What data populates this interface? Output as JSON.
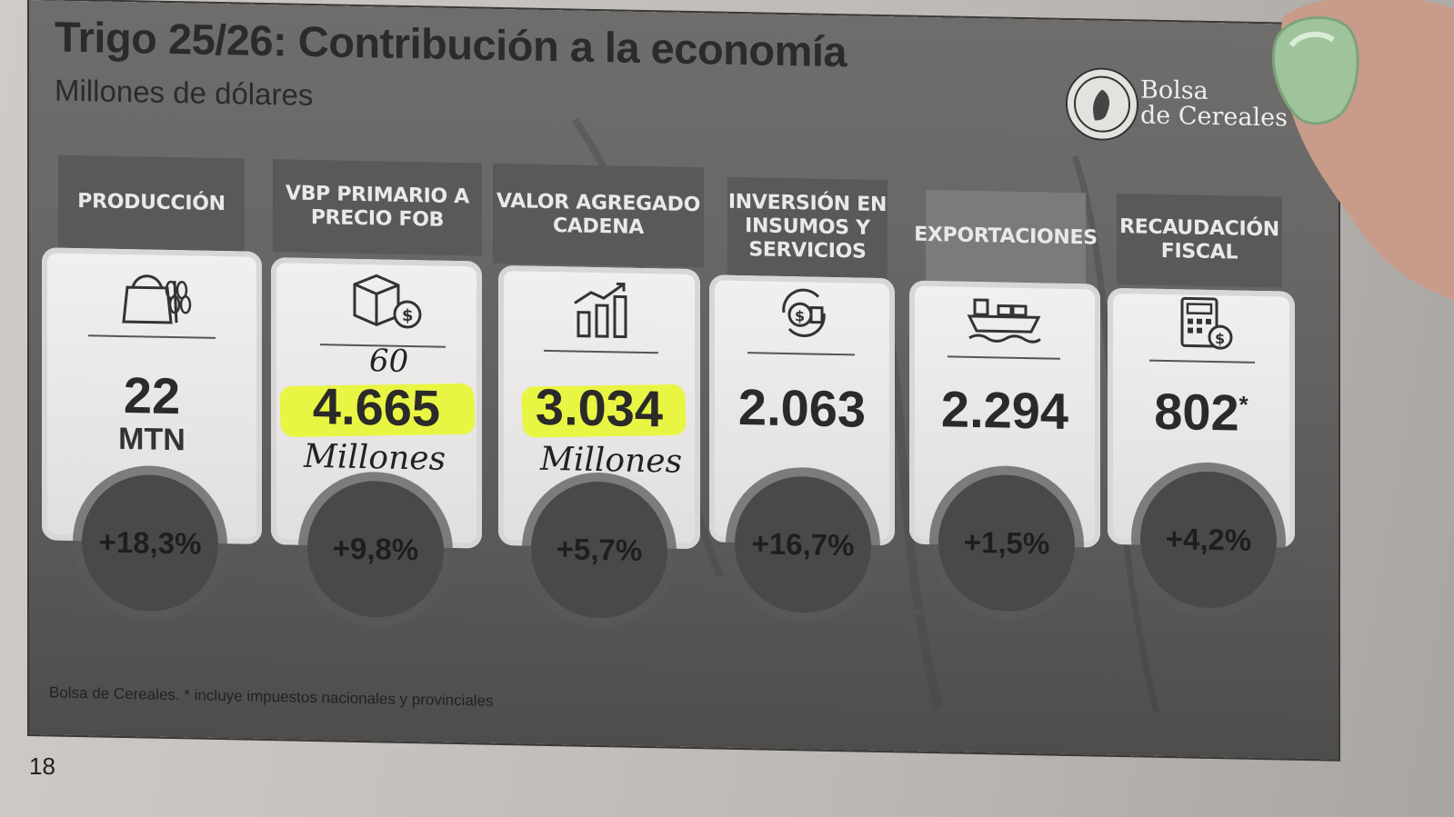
{
  "slide": {
    "title": "Trigo 25/26: Contribución a la economía",
    "subtitle": "Millones de dólares",
    "logo": {
      "text_line1": "Bolsa",
      "text_line2": "de Cereales"
    },
    "footnote": "Bolsa de Cereales. * incluye impuestos nacionales y provinciales"
  },
  "cards": [
    {
      "label": "PRODUCCIÓN",
      "icon": "wheat-sack-icon",
      "value": "22",
      "unit": "MTN",
      "change": "+18,3%"
    },
    {
      "label": "VBP PRIMARIO A PRECIO FOB",
      "icon": "boxes-dollar-icon",
      "value": "4.665",
      "change": "+9,8%",
      "highlighted": true
    },
    {
      "label": "VALOR AGREGADO CADENA",
      "icon": "bar-chart-growth-icon",
      "value": "3.034",
      "change": "+5,7%",
      "highlighted": true
    },
    {
      "label": "INVERSIÓN EN INSUMOS Y SERVICIOS",
      "icon": "coins-cycle-icon",
      "value": "2.063",
      "change": "+16,7%"
    },
    {
      "label": "EXPORTACIONES",
      "icon": "cargo-ship-icon",
      "value": "2.294",
      "change": "+1,5%"
    },
    {
      "label": "RECAUDACIÓN FISCAL",
      "icon": "calculator-dollar-icon",
      "value": "802",
      "value_mark": "*",
      "change": "+4,2%"
    }
  ],
  "handwriting": {
    "note_above_card2": "60",
    "note_card2": "Millones",
    "note_card3": "Millones"
  },
  "page_number": "18",
  "colors": {
    "highlight": "#e9f53a",
    "slide_bg": "#6a6867",
    "card_bg": "#f1f0ef"
  }
}
